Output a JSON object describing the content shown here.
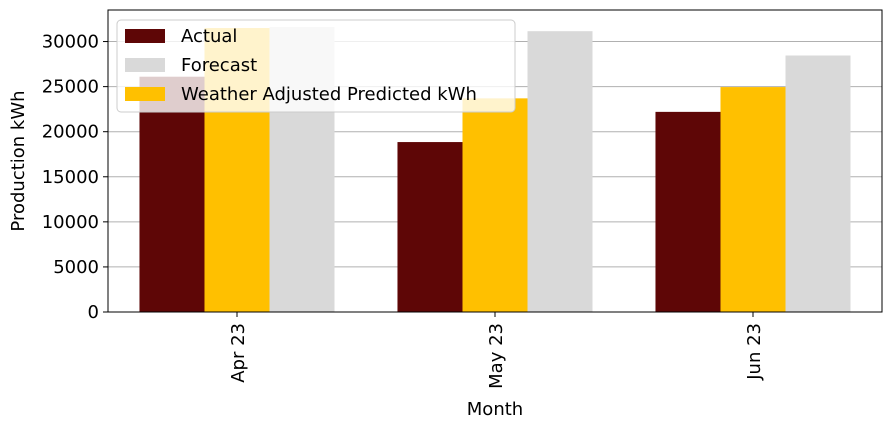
{
  "chart_data": {
    "type": "bar",
    "categories": [
      "Apr 23",
      "May 23",
      "Jun 23"
    ],
    "series": [
      {
        "name": "Actual",
        "color": "#5e0606",
        "values": [
          26100,
          18850,
          22200
        ]
      },
      {
        "name": "Weather Adjusted Predicted kWh",
        "color": "#ffc000",
        "values": [
          31500,
          23700,
          24950
        ]
      },
      {
        "name": "Forecast",
        "color": "#d9d9d9",
        "values": [
          31600,
          31150,
          28450
        ]
      }
    ],
    "legend_order": [
      "Actual",
      "Forecast",
      "Weather Adjusted Predicted kWh"
    ],
    "xlabel": "Month",
    "ylabel": "Production kWh",
    "ylim": [
      0,
      33500
    ],
    "yticks": [
      0,
      5000,
      10000,
      15000,
      20000,
      25000,
      30000
    ],
    "grid": "horizontal",
    "legend_position": "top-left"
  }
}
